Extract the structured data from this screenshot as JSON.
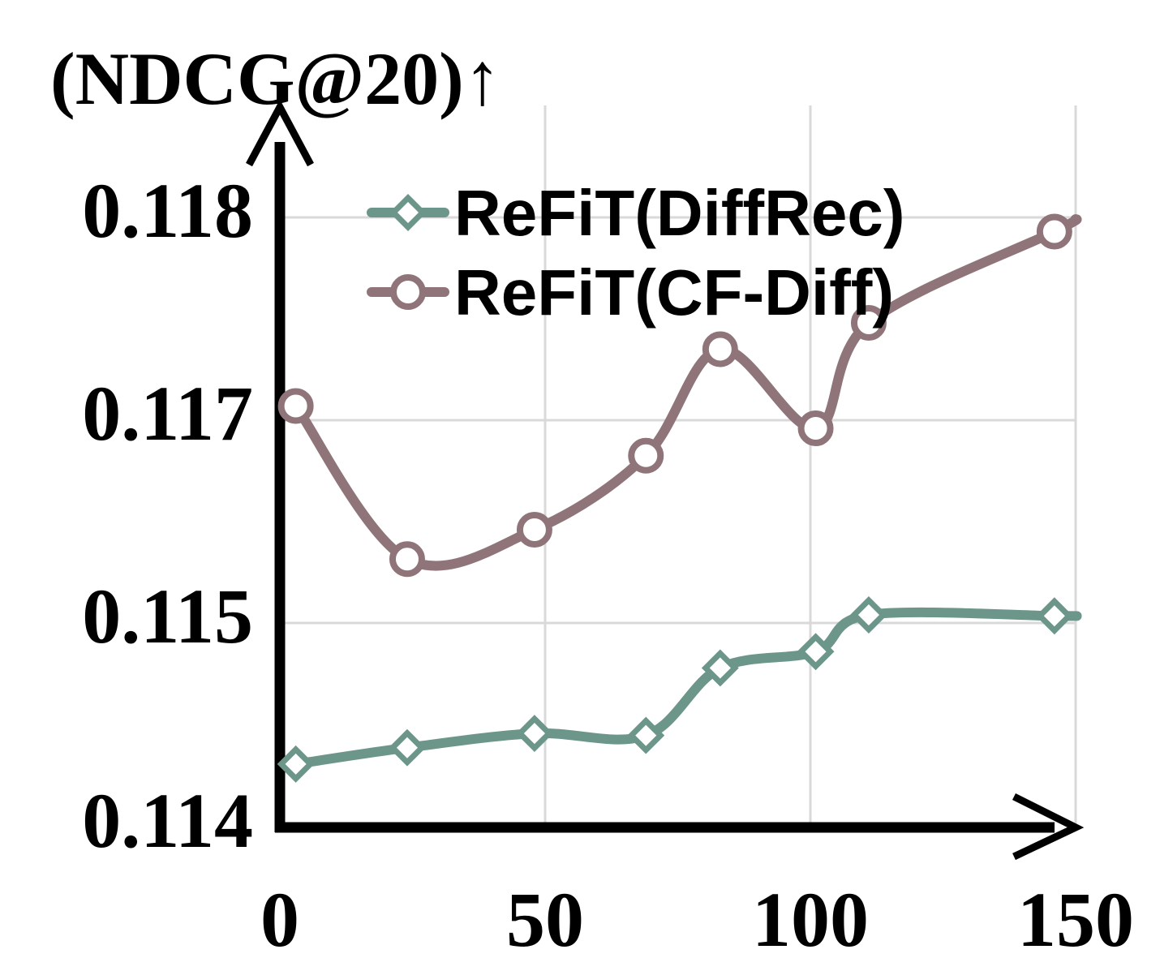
{
  "chart_data": {
    "type": "line",
    "ylabel": "(NDCG@20)↑",
    "xlabel": "",
    "x_ticks": [
      "0",
      "50",
      "100",
      "150"
    ],
    "y_ticks": [
      "0.114",
      "0.115",
      "0.117",
      "0.118"
    ],
    "xlim": [
      0,
      150
    ],
    "grid": true,
    "legend": "top-center",
    "series": [
      {
        "name": "ReFiT(DiffRec)",
        "color": "#6d968a",
        "marker": "diamond",
        "points": [
          [
            3,
            0.11431
          ],
          [
            24,
            0.11439
          ],
          [
            48,
            0.11446
          ],
          [
            69,
            0.11445
          ],
          [
            83,
            0.11478
          ],
          [
            101,
            0.11486
          ],
          [
            111,
            0.11508
          ],
          [
            146,
            0.11507
          ]
        ]
      },
      {
        "name": "ReFiT(CF-Diff)",
        "color": "#8f757a",
        "marker": "circle",
        "points": [
          [
            3,
            0.11707
          ],
          [
            24,
            0.11563
          ],
          [
            48,
            0.11592
          ],
          [
            69,
            0.11665
          ],
          [
            83,
            0.11735
          ],
          [
            101,
            0.11692
          ],
          [
            111,
            0.11748
          ],
          [
            146,
            0.11793
          ]
        ]
      }
    ]
  }
}
